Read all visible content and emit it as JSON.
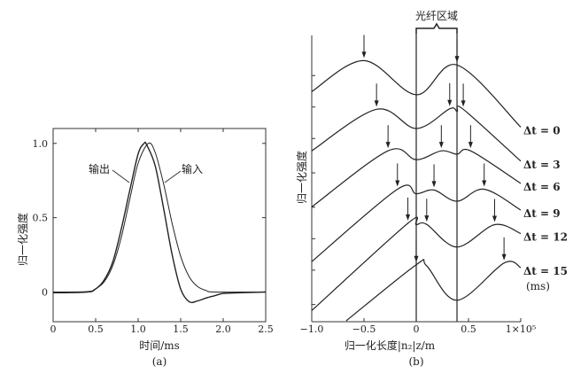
{
  "chart_data": [
    {
      "type": "line",
      "panel_label": "(a)",
      "xlabel": "时间/ms",
      "ylabel": "归一化强度",
      "xlim": [
        0,
        2.5
      ],
      "ylim": [
        -0.2,
        1.1
      ],
      "xticks": [
        "0",
        "0.5",
        "1.0",
        "1.5",
        "2.0",
        "2.5"
      ],
      "xtick_values": [
        0,
        0.5,
        1.0,
        1.5,
        2.0,
        2.5
      ],
      "yticks": [
        "0",
        "0.5",
        "1.0"
      ],
      "ytick_values": [
        0,
        0.5,
        1.0
      ],
      "grid": false,
      "series": [
        {
          "name": "输入",
          "points": [
            [
              0,
              0
            ],
            [
              0.4,
              0.003
            ],
            [
              0.5,
              0.022
            ],
            [
              0.6,
              0.069
            ],
            [
              0.7,
              0.175
            ],
            [
              0.8,
              0.364
            ],
            [
              0.9,
              0.62
            ],
            [
              1.0,
              0.867
            ],
            [
              1.12,
              1.0
            ],
            [
              1.2,
              0.939
            ],
            [
              1.3,
              0.726
            ],
            [
              1.4,
              0.461
            ],
            [
              1.5,
              0.24
            ],
            [
              1.6,
              0.103
            ],
            [
              1.7,
              0.036
            ],
            [
              1.8,
              0.01
            ],
            [
              1.9,
              0.0
            ],
            [
              2.5,
              0.0
            ]
          ]
        },
        {
          "name": "输出",
          "points": [
            [
              0,
              -0.005
            ],
            [
              0.4,
              0.0
            ],
            [
              0.5,
              0.02
            ],
            [
              0.6,
              0.08
            ],
            [
              0.7,
              0.2
            ],
            [
              0.8,
              0.42
            ],
            [
              0.9,
              0.68
            ],
            [
              1.0,
              0.93
            ],
            [
              1.07,
              1.0
            ],
            [
              1.1,
              0.99
            ],
            [
              1.2,
              0.85
            ],
            [
              1.3,
              0.56
            ],
            [
              1.4,
              0.25
            ],
            [
              1.5,
              0.02
            ],
            [
              1.6,
              -0.065
            ],
            [
              1.7,
              -0.06
            ],
            [
              1.8,
              -0.04
            ],
            [
              1.9,
              -0.025
            ],
            [
              2.0,
              -0.01
            ],
            [
              2.2,
              -0.005
            ],
            [
              2.5,
              0.0
            ]
          ]
        }
      ]
    },
    {
      "type": "line",
      "panel_label": "(b)",
      "xlabel": "归一化长度|n₂|z/m",
      "ylabel": "归一化强度",
      "region_label": "光纤区域",
      "region": [
        0,
        0.39
      ],
      "xlim": [
        -1.0,
        1.0
      ],
      "ylim": [
        0,
        10
      ],
      "xticks": [
        "−1.0",
        "−0.5",
        "0",
        "0.5",
        "1×10⁵"
      ],
      "xtick_values": [
        -1.0,
        -0.5,
        0,
        0.5,
        1.0
      ],
      "ytick_values": [
        0.6,
        1.8,
        2.9,
        4.0,
        5.2,
        6.4,
        7.5,
        8.6
      ],
      "unit_label": "(ms)",
      "grid": false,
      "series": [
        {
          "name": "Δt = 0",
          "points": [
            [
              -1,
              8.04
            ],
            [
              -0.5,
              9.12
            ],
            [
              0,
              7.93
            ],
            [
              0.39,
              8.97
            ],
            [
              1.0,
              6.8
            ]
          ],
          "arrows": [
            -0.5,
            0.39
          ]
        },
        {
          "name": "Δt = 3",
          "points": [
            [
              -1,
              5.97
            ],
            [
              -0.38,
              7.42
            ],
            [
              0,
              6.75
            ],
            [
              0.32,
              7.44
            ],
            [
              0.39,
              7.35
            ],
            [
              0.45,
              7.42
            ],
            [
              1,
              5.61
            ]
          ],
          "arrows": [
            -0.38,
            0.32,
            0.45
          ]
        },
        {
          "name": "Δt = 6",
          "points": [
            [
              -1,
              4.01
            ],
            [
              -0.27,
              5.97
            ],
            [
              0,
              5.66
            ],
            [
              0.24,
              5.97
            ],
            [
              0.39,
              5.85
            ],
            [
              0.52,
              5.97
            ],
            [
              1,
              4.83
            ]
          ],
          "arrows": [
            -0.27,
            0.24,
            0.52
          ]
        },
        {
          "name": "Δt = 9",
          "points": [
            [
              -1,
              2.1
            ],
            [
              -0.18,
              4.63
            ],
            [
              0,
              4.47
            ],
            [
              0.17,
              4.6
            ],
            [
              0.39,
              4.21
            ],
            [
              0.65,
              4.63
            ],
            [
              1,
              3.9
            ]
          ],
          "arrows": [
            -0.18,
            0.17,
            0.65
          ]
        },
        {
          "name": "Δt = 12",
          "points": [
            [
              -1,
              0.39
            ],
            [
              -0.08,
              3.44
            ],
            [
              0,
              3.39
            ],
            [
              0.1,
              3.4
            ],
            [
              0.39,
              2.61
            ],
            [
              0.75,
              3.39
            ],
            [
              1,
              3.08
            ]
          ],
          "arrows": [
            -0.08,
            0.1,
            0.75
          ]
        },
        {
          "name": "Δt = 15",
          "points": [
            [
              -0.67,
              0.03
            ],
            [
              0,
              1.99
            ],
            [
              0.1,
              1.95
            ],
            [
              0.39,
              0.75
            ],
            [
              0.84,
              2.05
            ],
            [
              1,
              1.89
            ]
          ],
          "arrows": [
            0,
            0.84
          ]
        }
      ]
    }
  ]
}
